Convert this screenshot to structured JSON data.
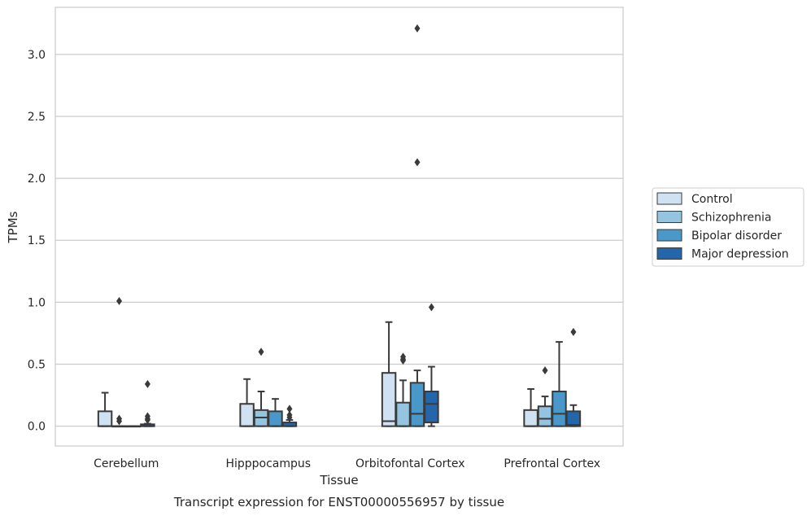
{
  "chart_data": {
    "type": "box",
    "title": "Transcript expression for ENST00000556957 by tissue",
    "xlabel": "Tissue",
    "ylabel": "TPMs",
    "ylim": [
      -0.16,
      3.38
    ],
    "yticks": [
      "0.0",
      "0.5",
      "1.0",
      "1.5",
      "2.0",
      "2.5",
      "3.0"
    ],
    "grid": true,
    "legend_position": "right",
    "categories": [
      "Cerebellum",
      "Hipppocampus",
      "Orbitofontal Cortex",
      "Prefrontal Cortex"
    ],
    "series": [
      {
        "name": "Control",
        "color": "#d0e1f2",
        "boxes": [
          {
            "q1": 0.0,
            "median": 0.0,
            "q3": 0.12,
            "whislo": 0.0,
            "whishi": 0.27,
            "fliers": []
          },
          {
            "q1": 0.0,
            "median": 0.0,
            "q3": 0.18,
            "whislo": 0.0,
            "whishi": 0.38,
            "fliers": []
          },
          {
            "q1": 0.0,
            "median": 0.04,
            "q3": 0.43,
            "whislo": 0.0,
            "whishi": 0.84,
            "fliers": []
          },
          {
            "q1": 0.0,
            "median": 0.0,
            "q3": 0.13,
            "whislo": 0.0,
            "whishi": 0.3,
            "fliers": []
          }
        ]
      },
      {
        "name": "Schizophrenia",
        "color": "#94c4df",
        "boxes": [
          {
            "q1": 0.0,
            "median": 0.0,
            "q3": 0.0,
            "whislo": 0.0,
            "whishi": 0.0,
            "fliers": [
              1.01,
              0.06,
              0.04
            ]
          },
          {
            "q1": 0.0,
            "median": 0.07,
            "q3": 0.13,
            "whislo": 0.0,
            "whishi": 0.28,
            "fliers": [
              0.6
            ]
          },
          {
            "q1": 0.0,
            "median": 0.0,
            "q3": 0.19,
            "whislo": 0.0,
            "whishi": 0.37,
            "fliers": [
              0.56,
              0.54,
              0.53
            ]
          },
          {
            "q1": 0.0,
            "median": 0.06,
            "q3": 0.16,
            "whislo": 0.0,
            "whishi": 0.24,
            "fliers": [
              0.45
            ]
          }
        ]
      },
      {
        "name": "Bipolar disorder",
        "color": "#4a98c9",
        "boxes": [
          {
            "q1": 0.0,
            "median": 0.0,
            "q3": 0.0,
            "whislo": 0.0,
            "whishi": 0.0,
            "fliers": []
          },
          {
            "q1": 0.0,
            "median": 0.0,
            "q3": 0.12,
            "whislo": 0.0,
            "whishi": 0.22,
            "fliers": []
          },
          {
            "q1": 0.0,
            "median": 0.1,
            "q3": 0.35,
            "whislo": 0.0,
            "whishi": 0.45,
            "fliers": [
              3.21,
              2.13
            ]
          },
          {
            "q1": 0.0,
            "median": 0.1,
            "q3": 0.28,
            "whislo": 0.0,
            "whishi": 0.68,
            "fliers": []
          }
        ]
      },
      {
        "name": "Major depression",
        "color": "#2366ac",
        "boxes": [
          {
            "q1": 0.0,
            "median": 0.0,
            "q3": 0.015,
            "whislo": 0.0,
            "whishi": 0.02,
            "fliers": [
              0.34,
              0.08,
              0.06,
              0.05
            ]
          },
          {
            "q1": 0.0,
            "median": 0.0,
            "q3": 0.03,
            "whislo": 0.0,
            "whishi": 0.05,
            "fliers": [
              0.14,
              0.09,
              0.07
            ]
          },
          {
            "q1": 0.03,
            "median": 0.18,
            "q3": 0.28,
            "whislo": 0.0,
            "whishi": 0.48,
            "fliers": [
              0.96
            ]
          },
          {
            "q1": 0.0,
            "median": 0.01,
            "q3": 0.12,
            "whislo": 0.0,
            "whishi": 0.17,
            "fliers": [
              0.76
            ]
          }
        ]
      }
    ]
  }
}
